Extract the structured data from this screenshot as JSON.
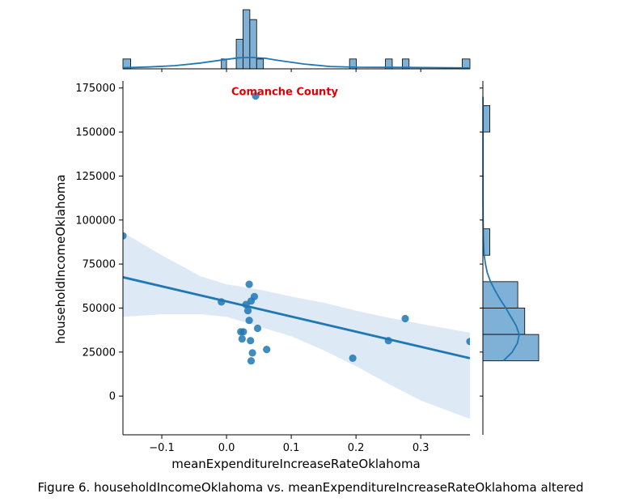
{
  "caption": "Figure 6. householdIncomeOklahoma vs. meanExpenditureIncreaseRateOklahoma altered",
  "chart_data": {
    "type": "scatter",
    "kind": "jointplot with regression line, confidence band, marginal histograms and KDE",
    "xlabel": "meanExpenditureIncreaseRateOklahoma",
    "ylabel": "householdIncomeOklahoma",
    "xlim": [
      -0.16,
      0.376
    ],
    "ylim": [
      -22000,
      179000
    ],
    "x_ticks": [
      -0.1,
      0.0,
      0.1,
      0.2,
      0.3
    ],
    "x_tick_labels": [
      "−0.1",
      "0.0",
      "0.1",
      "0.2",
      "0.3"
    ],
    "y_ticks": [
      0,
      25000,
      50000,
      75000,
      100000,
      125000,
      150000,
      175000
    ],
    "y_tick_labels": [
      "0",
      "25000",
      "50000",
      "75000",
      "100000",
      "125000",
      "150000",
      "175000"
    ],
    "grid": false,
    "colors": {
      "points": "#1f77b4",
      "band": "#c6dbef",
      "hist": "#7fb0d6",
      "annotation": "#e00000"
    },
    "annotation": {
      "text": "Comanche County",
      "x": 0.045,
      "y": 170000
    },
    "points": [
      {
        "x": -0.16,
        "y": 91000
      },
      {
        "x": -0.008,
        "y": 53500
      },
      {
        "x": 0.03,
        "y": 52000
      },
      {
        "x": 0.035,
        "y": 63500
      },
      {
        "x": 0.038,
        "y": 54000
      },
      {
        "x": 0.043,
        "y": 56500
      },
      {
        "x": 0.033,
        "y": 48500
      },
      {
        "x": 0.035,
        "y": 43000
      },
      {
        "x": 0.022,
        "y": 36500
      },
      {
        "x": 0.026,
        "y": 36500
      },
      {
        "x": 0.024,
        "y": 32500
      },
      {
        "x": 0.048,
        "y": 38500
      },
      {
        "x": 0.037,
        "y": 31500
      },
      {
        "x": 0.062,
        "y": 26500
      },
      {
        "x": 0.04,
        "y": 24500
      },
      {
        "x": 0.038,
        "y": 20000
      },
      {
        "x": 0.045,
        "y": 170500
      },
      {
        "x": 0.195,
        "y": 21500
      },
      {
        "x": 0.25,
        "y": 31500
      },
      {
        "x": 0.276,
        "y": 44000
      },
      {
        "x": 0.376,
        "y": 31000
      }
    ],
    "regression": {
      "x": [
        -0.16,
        0.376
      ],
      "y": [
        67500,
        21500
      ]
    },
    "confidence_band": {
      "x": [
        -0.16,
        -0.1,
        -0.04,
        0.0,
        0.05,
        0.1,
        0.15,
        0.2,
        0.25,
        0.3,
        0.376
      ],
      "upper": [
        93000,
        80000,
        68000,
        63500,
        60500,
        56500,
        53000,
        48500,
        44500,
        41000,
        36000
      ],
      "lower": [
        45000,
        46500,
        46500,
        45000,
        39500,
        34000,
        26000,
        17000,
        7000,
        -2500,
        -13000
      ]
    },
    "marginal_x_hist": {
      "bins": [
        {
          "x0": -0.16,
          "x1": -0.148,
          "count": 1
        },
        {
          "x0": -0.008,
          "x1": 0.0,
          "count": 1
        },
        {
          "x0": 0.015,
          "x1": 0.0255,
          "count": 3
        },
        {
          "x0": 0.0255,
          "x1": 0.036,
          "count": 6
        },
        {
          "x0": 0.036,
          "x1": 0.0465,
          "count": 5
        },
        {
          "x0": 0.0465,
          "x1": 0.057,
          "count": 1
        },
        {
          "x0": 0.19,
          "x1": 0.2005,
          "count": 1
        },
        {
          "x0": 0.2455,
          "x1": 0.256,
          "count": 1
        },
        {
          "x0": 0.2715,
          "x1": 0.282,
          "count": 1
        },
        {
          "x0": 0.364,
          "x1": 0.376,
          "count": 1
        }
      ],
      "kde_x": [
        -0.16,
        -0.12,
        -0.08,
        -0.04,
        0.0,
        0.02,
        0.04,
        0.06,
        0.08,
        0.12,
        0.16,
        0.2,
        0.26,
        0.32,
        0.376
      ],
      "kde_density": [
        0.4,
        0.7,
        1.2,
        2.2,
        3.6,
        4.2,
        4.3,
        4.0,
        3.2,
        1.8,
        0.9,
        0.6,
        0.55,
        0.45,
        0.35
      ]
    },
    "marginal_y_hist": {
      "bins": [
        {
          "y0": 150000,
          "y1": 165000,
          "count": 1
        },
        {
          "y0": 80000,
          "y1": 95000,
          "count": 1
        },
        {
          "y0": 50000,
          "y1": 65000,
          "count": 5
        },
        {
          "y0": 35000,
          "y1": 50000,
          "count": 6
        },
        {
          "y0": 20000,
          "y1": 35000,
          "count": 8
        }
      ],
      "kde_y": [
        20000,
        25000,
        30000,
        35000,
        40000,
        45000,
        50000,
        55000,
        60000,
        65000,
        70000,
        75000,
        80000,
        90000,
        100000,
        110000,
        120000,
        130000,
        140000,
        150000,
        160000,
        170000
      ],
      "kde_density": [
        1.6,
        2.3,
        2.7,
        2.85,
        2.6,
        2.2,
        1.8,
        1.35,
        0.95,
        0.6,
        0.35,
        0.2,
        0.1,
        0.04,
        0.02,
        0.015,
        0.01,
        0.01,
        0.01,
        0.01,
        0.01,
        0.01
      ]
    }
  }
}
